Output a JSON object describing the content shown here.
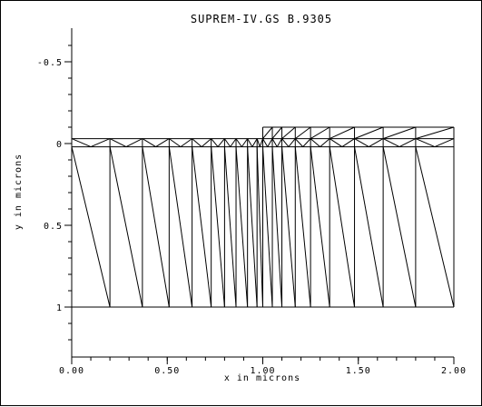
{
  "colors": {
    "background": "#ffffff",
    "ink": "#000000"
  },
  "chart_data": {
    "type": "mesh",
    "title": "SUPREM-IV.GS B.9305",
    "xlabel": "x in microns",
    "ylabel": "y in microns",
    "xlim": [
      0.0,
      2.0
    ],
    "ylim": [
      -0.7,
      1.3
    ],
    "y_inverted": true,
    "grid": false,
    "x_ticks": [
      {
        "value": 0.0,
        "label": "0.00"
      },
      {
        "value": 0.5,
        "label": "0.50"
      },
      {
        "value": 1.0,
        "label": "1.00"
      },
      {
        "value": 1.5,
        "label": "1.50"
      },
      {
        "value": 2.0,
        "label": "2.00"
      }
    ],
    "y_ticks": [
      {
        "value": -0.5,
        "label": "-0.5"
      },
      {
        "value": 0.0,
        "label": "0"
      },
      {
        "value": 0.5,
        "label": "0.5"
      },
      {
        "value": 1.0,
        "label": "1"
      }
    ],
    "top_nodes_x": [
      0.0,
      0.2,
      0.37,
      0.51,
      0.63,
      0.73,
      0.8,
      0.86,
      0.92,
      0.97,
      1.0,
      1.05,
      1.1,
      1.17,
      1.25,
      1.35,
      1.48,
      1.63,
      1.8,
      2.0
    ],
    "bottom_nodes_x": [
      0.0,
      0.2,
      0.37,
      0.51,
      0.63,
      0.73,
      0.8,
      0.86,
      0.92,
      0.97,
      1.0,
      1.05,
      1.1,
      1.17,
      1.25,
      1.35,
      1.48,
      1.63,
      1.8,
      2.0
    ],
    "surface_y": -0.03,
    "layer_y": 0.02,
    "bottom_y": 1.0,
    "oxide_x_range": [
      1.0,
      2.0
    ],
    "oxide_top_y": -0.1
  }
}
